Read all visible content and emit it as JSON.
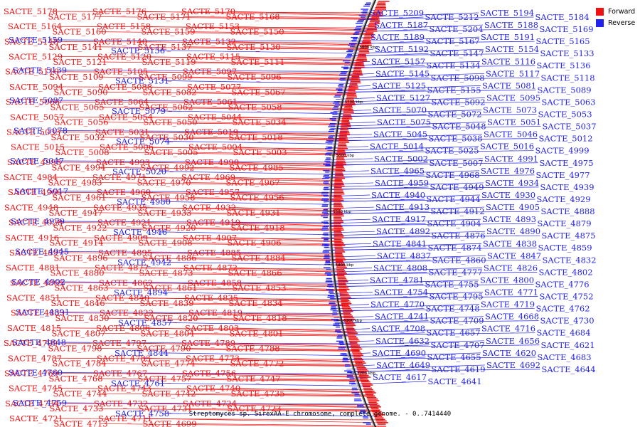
{
  "caption": "Streptomyces sp. SirexAA-E chromosome, complete genome. - 0..7414440",
  "legend": [
    {
      "label": "Forward",
      "color": "#ee1111"
    },
    {
      "label": "Reverse",
      "color": "#2222ee"
    }
  ],
  "colors": {
    "forward": "#ee1111",
    "reverse": "#2222ee",
    "backbone": "#222222"
  },
  "scale_ticks": [
    "5800 kbp",
    "5700 kbp",
    "5600 kbp",
    "5500 kbp",
    "5400 kbp",
    "5300 kbp",
    "5200 kbp"
  ],
  "forward_genes": [
    "SACTE_5178",
    "SACTE_5177",
    "SACTE_5176",
    "SACTE_5171",
    "SACTE_5170",
    "SACTE_5168",
    "SACTE_5164",
    "SACTE_5160",
    "SACTE_5158",
    "SACTE_5159",
    "SACTE_5153",
    "SACTE_5150",
    "SACTE_5148",
    "SACTE_5141",
    "SACTE_5140",
    "SACTE_5137",
    "SACTE_5132",
    "SACTE_5130",
    "SACTE_5129",
    "SACTE_5121",
    "SACTE_5120",
    "SACTE_5119",
    "SACTE_5115",
    "SACTE_5111",
    "SACTE_5110",
    "SACTE_5109",
    "SACTE_5105",
    "SACTE_5099",
    "SACTE_5097",
    "SACTE_5096",
    "SACTE_5094",
    "SACTE_5090",
    "SACTE_5088",
    "SACTE_5082",
    "SACTE_5077",
    "SACTE_5067",
    "SACTE_5066",
    "SACTE_5065",
    "SACTE_5064",
    "SACTE_5062",
    "SACTE_5061",
    "SACTE_5058",
    "SACTE_5057",
    "SACTE_5056",
    "SACTE_5054",
    "SACTE_5050",
    "SACTE_5044",
    "SACTE_5034",
    "SACTE_5033",
    "SACTE_5032",
    "SACTE_5031",
    "SACTE_5030",
    "SACTE_5019",
    "SACTE_5018",
    "SACTE_5015",
    "SACTE_5008",
    "SACTE_5006",
    "SACTE_5005",
    "SACTE_5004",
    "SACTE_5003",
    "SACTE_4995",
    "SACTE_4994",
    "SACTE_4993",
    "SACTE_4992",
    "SACTE_4990",
    "SACTE_4985",
    "SACTE_4984",
    "SACTE_4983",
    "SACTE_4971",
    "SACTE_4970",
    "SACTE_4969",
    "SACTE_4967",
    "SACTE_4966",
    "SACTE_4961",
    "SACTE_4960",
    "SACTE_4958",
    "SACTE_4957",
    "SACTE_4956",
    "SACTE_4948",
    "SACTE_4947",
    "SACTE_4935",
    "SACTE_4933",
    "SACTE_4932",
    "SACTE_4931",
    "SACTE_4928",
    "SACTE_4922",
    "SACTE_4921",
    "SACTE_4920",
    "SACTE_4919",
    "SACTE_4918",
    "SACTE_4916",
    "SACTE_4914",
    "SACTE_4909",
    "SACTE_4908",
    "SACTE_4907",
    "SACTE_4906",
    "SACTE_4897",
    "SACTE_4896",
    "SACTE_4895",
    "SACTE_4886",
    "SACTE_4885",
    "SACTE_4884",
    "SACTE_4881",
    "SACTE_4880",
    "SACTE_4877",
    "SACTE_4873",
    "SACTE_4872",
    "SACTE_4866",
    "SACTE_4865",
    "SACTE_4863",
    "SACTE_4862",
    "SACTE_4861",
    "SACTE_4858",
    "SACTE_4853",
    "SACTE_4851",
    "SACTE_4846",
    "SACTE_4840",
    "SACTE_4839",
    "SACTE_4835",
    "SACTE_4834",
    "SACTE_4833",
    "SACTE_4830",
    "SACTE_4822",
    "SACTE_4820",
    "SACTE_4819",
    "SACTE_4818",
    "SACTE_4815",
    "SACTE_4807",
    "SACTE_4806",
    "SACTE_4804",
    "SACTE_4803",
    "SACTE_4801",
    "SACTE_4799",
    "SACTE_4798",
    "SACTE_4797",
    "SACTE_4790",
    "SACTE_4789",
    "SACTE_4788",
    "SACTE_4787",
    "SACTE_4784",
    "SACTE_4783",
    "SACTE_4774",
    "SACTE_4773",
    "SACTE_4772",
    "SACTE_4769",
    "SACTE_4768",
    "SACTE_4767",
    "SACTE_4757",
    "SACTE_4756",
    "SACTE_4747",
    "SACTE_4745",
    "SACTE_4744",
    "SACTE_4743",
    "SACTE_4742",
    "SACTE_4740",
    "SACTE_4735",
    "SACTE_4734",
    "SACTE_4733",
    "SACTE_4732",
    "SACTE_4731",
    "SACTE_4724",
    "SACTE_4723",
    "SACTE_4721",
    "SACTE_4713",
    "SACTE_4711",
    "SACTE_4699"
  ],
  "reverse_genes_left": [
    "SACTE_5159",
    "SACTE_5156",
    "SACTE_5139",
    "SACTE_5131",
    "SACTE_5087",
    "SACTE_5079",
    "SACTE_5078",
    "SACTE_5074",
    "SACTE_5047",
    "SACTE_5020",
    "SACTE_5017",
    "SACTE_4980",
    "SACTE_4979",
    "SACTE_4946",
    "SACTE_4945",
    "SACTE_4942",
    "SACTE_4902",
    "SACTE_4894",
    "SACTE_4891",
    "SACTE_4857",
    "SACTE_4848",
    "SACTE_4844",
    "SACTE_4760",
    "SACTE_4761",
    "SACTE_4759",
    "SACTE_4758"
  ],
  "reverse_genes": [
    "SACTE_5209",
    "SACTE_5212",
    "SACTE_5194",
    "SACTE_5184",
    "SACTE_5187",
    "SACTE_5204",
    "SACTE_5188",
    "SACTE_5169",
    "SACTE_5189",
    "SACTE_5167",
    "SACTE_5191",
    "SACTE_5165",
    "SACTE_5192",
    "SACTE_5147",
    "SACTE_5154",
    "SACTE_5133",
    "SACTE_5157",
    "SACTE_5134",
    "SACTE_5116",
    "SACTE_5136",
    "SACTE_5145",
    "SACTE_5098",
    "SACTE_5117",
    "SACTE_5118",
    "SACTE_5125",
    "SACTE_5155",
    "SACTE_5081",
    "SACTE_5089",
    "SACTE_5127",
    "SACTE_5092",
    "SACTE_5095",
    "SACTE_5063",
    "SACTE_5070",
    "SACTE_5072",
    "SACTE_5073",
    "SACTE_5053",
    "SACTE_5075",
    "SACTE_5048",
    "SACTE_5051",
    "SACTE_5037",
    "SACTE_5045",
    "SACTE_5038",
    "SACTE_5046",
    "SACTE_5012",
    "SACTE_5014",
    "SACTE_5025",
    "SACTE_5016",
    "SACTE_4999",
    "SACTE_5002",
    "SACTE_5007",
    "SACTE_4991",
    "SACTE_4975",
    "SACTE_4965",
    "SACTE_4968",
    "SACTE_4976",
    "SACTE_4977",
    "SACTE_4959",
    "SACTE_4949",
    "SACTE_4934",
    "SACTE_4939",
    "SACTE_4940",
    "SACTE_4944",
    "SACTE_4930",
    "SACTE_4929",
    "SACTE_4913",
    "SACTE_4912",
    "SACTE_4905",
    "SACTE_4888",
    "SACTE_4917",
    "SACTE_4904",
    "SACTE_4893",
    "SACTE_4879",
    "SACTE_4892",
    "SACTE_4876",
    "SACTE_4890",
    "SACTE_4875",
    "SACTE_4841",
    "SACTE_4874",
    "SACTE_4838",
    "SACTE_4859",
    "SACTE_4837",
    "SACTE_4860",
    "SACTE_4847",
    "SACTE_4832",
    "SACTE_4808",
    "SACTE_4777",
    "SACTE_4826",
    "SACTE_4802",
    "SACTE_4781",
    "SACTE_4755",
    "SACTE_4800",
    "SACTE_4776",
    "SACTE_4754",
    "SACTE_4795",
    "SACTE_4771",
    "SACTE_4752",
    "SACTE_4770",
    "SACTE_4748",
    "SACTE_4719",
    "SACTE_4762",
    "SACTE_4741",
    "SACTE_4709",
    "SACTE_4668",
    "SACTE_4730",
    "SACTE_4708",
    "SACTE_4657",
    "SACTE_4716",
    "SACTE_4684",
    "SACTE_4632",
    "SACTE_4707",
    "SACTE_4656",
    "SACTE_4621",
    "SACTE_4690",
    "SACTE_4655",
    "SACTE_4620",
    "SACTE_4683",
    "SACTE_4649",
    "SACTE_4619",
    "SACTE_4692",
    "SACTE_4644",
    "SACTE_4617",
    "SACTE_4641"
  ]
}
